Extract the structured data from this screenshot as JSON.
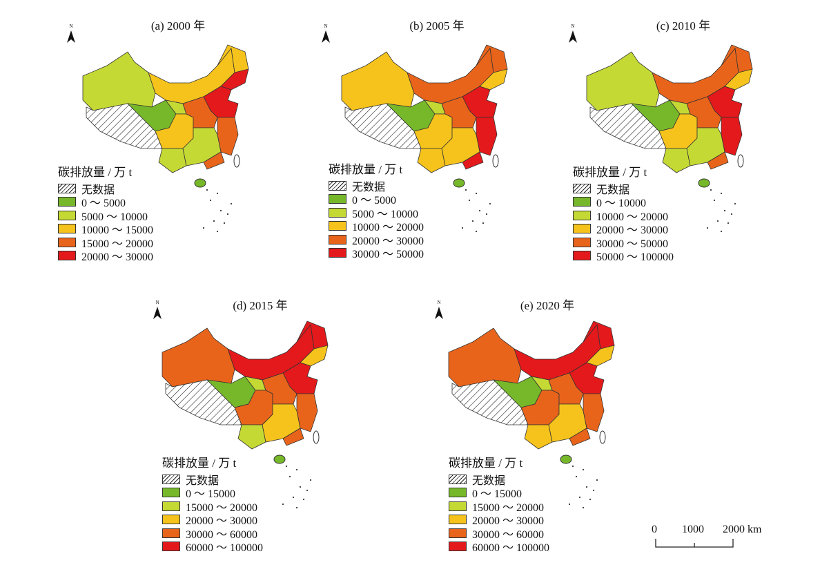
{
  "colors": {
    "class0": "#76b82a",
    "class1": "#c5d934",
    "class2": "#f5c31c",
    "class3": "#e8641b",
    "class4": "#e3191c",
    "no_data_hatch": "#222222",
    "border": "#333333"
  },
  "legend_title": "碳排放量 / 万 t",
  "no_data_label": "无数据",
  "north_label": "N",
  "regions": [
    "Xinjiang",
    "Tibet",
    "Qinghai",
    "Inner Mongolia",
    "Heilongjiang",
    "Jilin-Liaoning",
    "Gansu-Ningxia",
    "Sichuan-Chongqing",
    "Yunnan",
    "North China",
    "Central",
    "East coast",
    "South central",
    "Guangdong",
    "Hainan"
  ],
  "panels": [
    {
      "title": "(a) 2000 年",
      "classes": [
        "0 ～ 5000",
        "5000 ～ 10000",
        "10000 ～ 15000",
        "15000 ～ 20000",
        "20000 ～ 30000"
      ],
      "region_class": [
        1,
        -1,
        0,
        2,
        2,
        4,
        1,
        2,
        1,
        4,
        3,
        3,
        1,
        3,
        0
      ]
    },
    {
      "title": "(b) 2005 年",
      "classes": [
        "0 ～ 5000",
        "5000 ～ 10000",
        "10000 ～ 20000",
        "20000 ～ 30000",
        "30000 ～ 50000"
      ],
      "region_class": [
        2,
        -1,
        0,
        3,
        3,
        2,
        1,
        2,
        2,
        4,
        3,
        4,
        2,
        4,
        0
      ]
    },
    {
      "title": "(c) 2010 年",
      "classes": [
        "0 ～ 10000",
        "10000 ～ 20000",
        "20000 ～ 30000",
        "30000 ～ 50000",
        "50000 ～ 100000"
      ],
      "region_class": [
        1,
        -1,
        0,
        3,
        3,
        2,
        1,
        2,
        1,
        4,
        3,
        4,
        1,
        3,
        0
      ]
    },
    {
      "title": "(d) 2015 年",
      "classes": [
        "0 ～ 15000",
        "15000 ～ 20000",
        "20000 ～ 30000",
        "30000 ～ 60000",
        "60000 ～ 100000"
      ],
      "region_class": [
        3,
        -1,
        0,
        4,
        4,
        2,
        1,
        3,
        1,
        4,
        3,
        3,
        2,
        3,
        0
      ]
    },
    {
      "title": "(e) 2020 年",
      "classes": [
        "0 ～ 15000",
        "15000 ～ 20000",
        "20000 ～ 30000",
        "30000 ～ 60000",
        "60000 ～ 100000"
      ],
      "region_class": [
        3,
        -1,
        0,
        4,
        4,
        2,
        1,
        3,
        2,
        4,
        3,
        3,
        2,
        3,
        0
      ]
    }
  ],
  "scale_bar": {
    "ticks": [
      "0",
      "1000",
      "2000 km"
    ]
  }
}
